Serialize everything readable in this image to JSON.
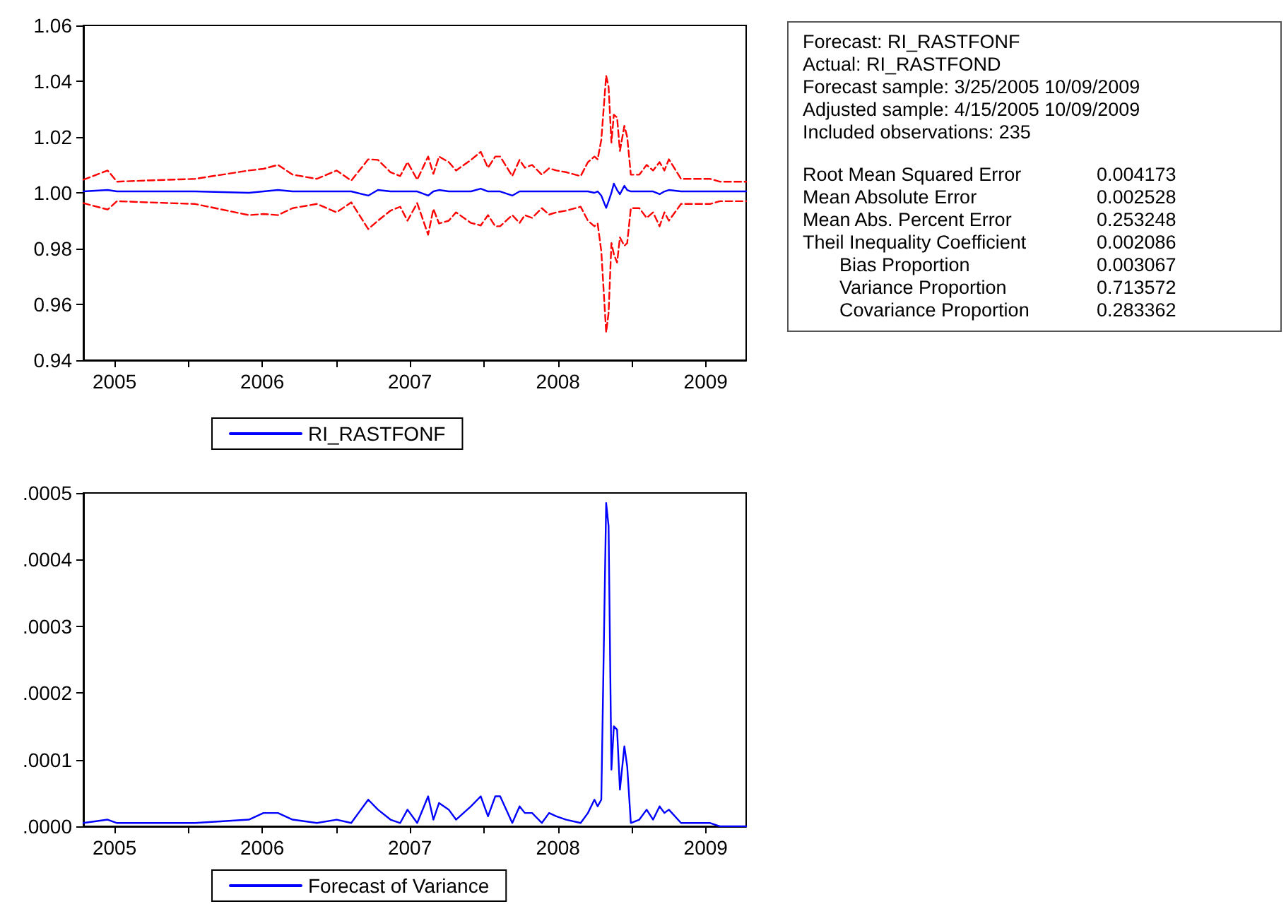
{
  "chart_data": [
    {
      "type": "line",
      "x": [
        "2005-04-15",
        "2005-06-14",
        "2005-07-07",
        "2005-09-17",
        "2006-01-16",
        "2006-05-29",
        "2006-07-04",
        "2006-08-09",
        "2006-09-14",
        "2006-11-13",
        "2007-01-01",
        "2007-02-06",
        "2007-03-20",
        "2007-04-13",
        "2007-05-14",
        "2007-06-07",
        "2007-06-25",
        "2007-07-19",
        "2007-08-15",
        "2007-08-28",
        "2007-09-11",
        "2007-10-05",
        "2007-10-23",
        "2007-11-29",
        "2007-12-23",
        "2008-01-10",
        "2008-01-28",
        "2008-02-09",
        "2008-03-10",
        "2008-03-28",
        "2008-04-10",
        "2008-04-28",
        "2008-05-22",
        "2008-06-09",
        "2008-06-27",
        "2008-07-21",
        "2008-08-26",
        "2008-09-13",
        "2008-09-29",
        "2008-10-07",
        "2008-10-16",
        "2008-10-28",
        "2008-11-03",
        "2008-11-10",
        "2008-11-16",
        "2008-11-24",
        "2008-12-01",
        "2008-12-12",
        "2008-12-19",
        "2008-12-28",
        "2009-01-18",
        "2009-02-05",
        "2009-02-21",
        "2009-03-09",
        "2009-03-21",
        "2009-04-01",
        "2009-05-01",
        "2009-07-12",
        "2009-08-05",
        "2009-10-09"
      ],
      "series": [
        {
          "color": "#ff0000",
          "line_style": "dashed",
          "values": [
            1.0047,
            1.008,
            1.004,
            1.0044,
            1.005,
            1.008,
            1.0086,
            1.01,
            1.0065,
            1.005,
            1.008,
            1.0044,
            1.012,
            1.0118,
            1.0074,
            1.006,
            1.011,
            1.0047,
            1.013,
            1.0068,
            1.013,
            1.011,
            1.008,
            1.0118,
            1.0147,
            1.009,
            1.013,
            1.013,
            1.006,
            1.0118,
            1.009,
            1.01,
            1.0065,
            1.0088,
            1.008,
            1.0074,
            1.006,
            1.011,
            1.013,
            1.012,
            1.019,
            1.042,
            1.038,
            1.018,
            1.028,
            1.027,
            1.015,
            1.024,
            1.02,
            1.0065,
            1.0065,
            1.01,
            1.008,
            1.011,
            1.008,
            1.012,
            1.005,
            1.005,
            1.004,
            1.004
          ]
        },
        {
          "color": "#ff0000",
          "line_style": "dashed",
          "values": [
            0.9963,
            0.994,
            0.997,
            0.9966,
            0.996,
            0.992,
            0.9924,
            0.992,
            0.9945,
            0.996,
            0.993,
            0.9966,
            0.987,
            0.99,
            0.9936,
            0.995,
            0.99,
            0.9963,
            0.985,
            0.9942,
            0.989,
            0.99,
            0.993,
            0.9892,
            0.9883,
            0.992,
            0.988,
            0.988,
            0.992,
            0.9892,
            0.992,
            0.991,
            0.9945,
            0.9922,
            0.993,
            0.9936,
            0.995,
            0.99,
            0.988,
            0.989,
            0.979,
            0.95,
            0.957,
            0.982,
            0.978,
            0.975,
            0.984,
            0.981,
            0.982,
            0.9945,
            0.9945,
            0.991,
            0.993,
            0.988,
            0.993,
            0.99,
            0.996,
            0.996,
            0.997,
            0.997
          ]
        },
        {
          "name": "RI_RASTFONF",
          "color": "#0000ff",
          "line_style": "solid",
          "values": [
            1.0005,
            1.001,
            1.0005,
            1.0005,
            1.0005,
            1.0,
            1.0005,
            1.001,
            1.0005,
            1.0005,
            1.0005,
            1.0005,
            0.999,
            1.001,
            1.0005,
            1.0005,
            1.0005,
            1.0005,
            0.999,
            1.0005,
            1.001,
            1.0005,
            1.0005,
            1.0005,
            1.0015,
            1.0005,
            1.0005,
            1.0005,
            0.999,
            1.0005,
            1.0005,
            1.0005,
            1.0005,
            1.0005,
            1.0005,
            1.0005,
            1.0005,
            1.0005,
            1.0,
            1.0005,
            0.999,
            0.9946,
            0.997,
            1.0,
            1.0033,
            1.001,
            0.9995,
            1.0025,
            1.001,
            1.0005,
            1.0005,
            1.0005,
            1.0005,
            0.9995,
            1.0005,
            1.001,
            1.0005,
            1.0005,
            1.0005,
            1.0005
          ]
        }
      ],
      "xlim": [
        "2005-04-15",
        "2009-10-09"
      ],
      "xticks": [
        {
          "value": "2005-07-01",
          "label": "2005"
        },
        {
          "value": "2006-01-01",
          "label": null
        },
        {
          "value": "2006-07-01",
          "label": "2006"
        },
        {
          "value": "2007-01-01",
          "label": null
        },
        {
          "value": "2007-07-01",
          "label": "2007"
        },
        {
          "value": "2008-01-01",
          "label": null
        },
        {
          "value": "2008-07-01",
          "label": "2008"
        },
        {
          "value": "2009-01-01",
          "label": null
        },
        {
          "value": "2009-07-01",
          "label": "2009"
        }
      ],
      "ylim": [
        0.94,
        1.06
      ],
      "yticks": [
        0.94,
        0.96,
        0.98,
        {
          "value": 1,
          "label": "1.00"
        },
        1.02,
        1.04,
        1.06
      ],
      "legend": "bottom",
      "marker": "none"
    },
    {
      "type": "line",
      "x": [
        "2005-04-15",
        "2005-06-14",
        "2005-07-07",
        "2005-09-17",
        "2006-01-16",
        "2006-05-29",
        "2006-07-04",
        "2006-08-09",
        "2006-09-14",
        "2006-11-13",
        "2007-01-01",
        "2007-02-06",
        "2007-03-20",
        "2007-04-13",
        "2007-05-14",
        "2007-06-07",
        "2007-06-25",
        "2007-07-19",
        "2007-08-15",
        "2007-08-28",
        "2007-09-11",
        "2007-10-05",
        "2007-10-23",
        "2007-11-29",
        "2007-12-23",
        "2008-01-10",
        "2008-01-28",
        "2008-02-09",
        "2008-03-10",
        "2008-03-28",
        "2008-04-10",
        "2008-04-28",
        "2008-05-22",
        "2008-06-09",
        "2008-06-27",
        "2008-07-21",
        "2008-08-26",
        "2008-09-13",
        "2008-09-29",
        "2008-10-07",
        "2008-10-16",
        "2008-10-28",
        "2008-11-03",
        "2008-11-10",
        "2008-11-16",
        "2008-11-24",
        "2008-12-01",
        "2008-12-12",
        "2008-12-19",
        "2008-12-28",
        "2009-01-18",
        "2009-02-05",
        "2009-02-21",
        "2009-03-09",
        "2009-03-21",
        "2009-04-01",
        "2009-05-01",
        "2009-07-12",
        "2009-08-05",
        "2009-10-09"
      ],
      "series": [
        {
          "name": "Forecast of Variance",
          "color": "#0000ff",
          "line_style": "solid",
          "values": [
            5e-06,
            1e-05,
            5e-06,
            5e-06,
            5e-06,
            1e-05,
            2e-05,
            2e-05,
            1e-05,
            5e-06,
            1e-05,
            5e-06,
            4e-05,
            2.5e-05,
            1e-05,
            5e-06,
            2.5e-05,
            5e-06,
            4.5e-05,
            1e-05,
            3.5e-05,
            2.5e-05,
            1e-05,
            3e-05,
            4.5e-05,
            1.5e-05,
            4.5e-05,
            4.5e-05,
            5e-06,
            3e-05,
            2e-05,
            2e-05,
            5e-06,
            2e-05,
            1.5e-05,
            1e-05,
            5e-06,
            2e-05,
            4e-05,
            3e-05,
            4e-05,
            0.000485,
            0.00045,
            8.5e-05,
            0.00015,
            0.000145,
            5.5e-05,
            0.00012,
            9e-05,
            5e-06,
            1e-05,
            2.5e-05,
            1e-05,
            3e-05,
            2e-05,
            2.5e-05,
            5e-06,
            5e-06,
            0,
            0
          ]
        }
      ],
      "xlim": [
        "2005-04-15",
        "2009-10-09"
      ],
      "xticks": [
        {
          "value": "2005-07-01",
          "label": "2005"
        },
        {
          "value": "2006-01-01",
          "label": null
        },
        {
          "value": "2006-07-01",
          "label": "2006"
        },
        {
          "value": "2007-01-01",
          "label": null
        },
        {
          "value": "2007-07-01",
          "label": "2007"
        },
        {
          "value": "2008-01-01",
          "label": null
        },
        {
          "value": "2008-07-01",
          "label": "2008"
        },
        {
          "value": "2009-01-01",
          "label": null
        },
        {
          "value": "2009-07-01",
          "label": "2009"
        }
      ],
      "ylim": [
        0,
        0.0005
      ],
      "yticks": [
        {
          "value": 0,
          "label": ".0000"
        },
        {
          "value": 0.0001,
          "label": ".0001"
        },
        {
          "value": 0.0002,
          "label": ".0002"
        },
        {
          "value": 0.0003,
          "label": ".0003"
        },
        {
          "value": 0.0004,
          "label": ".0004"
        },
        {
          "value": 0.0005,
          "label": ".0005"
        }
      ],
      "legend": "bottom",
      "marker": "none"
    },
    {
      "type": "other",
      "annotations": [
        "Forecast: RI_RASTFONF",
        "Actual: RI_RASTFOND",
        "Forecast sample: 3/25/2005 10/09/2009",
        "Adjusted sample: 4/15/2005 10/09/2009",
        "Included observations: 235"
      ],
      "categories": [
        "Root Mean Squared Error",
        "Mean Absolute Error",
        "Mean Abs. Percent Error",
        "Theil Inequality Coefficient",
        "Bias Proportion",
        "Variance Proportion",
        "Covariance Proportion"
      ],
      "values": [
        0.004173,
        0.002528,
        0.253248,
        0.002086,
        0.003067,
        0.713572,
        0.283362
      ],
      "data_labels": true
    }
  ]
}
